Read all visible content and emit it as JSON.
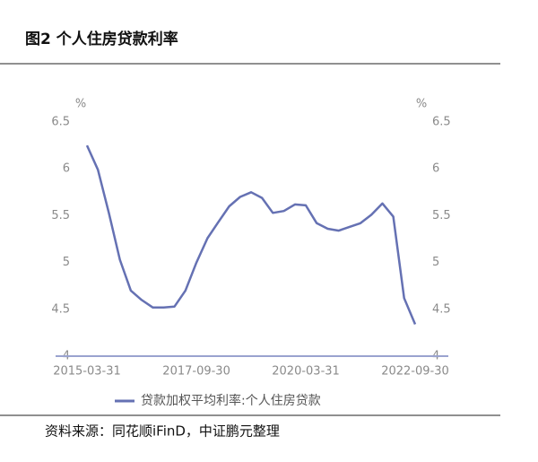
{
  "chart_data": {
    "type": "line",
    "title": "图2  个人住房贷款利率",
    "source": "资料来源：同花顺iFinD，中证鹏元整理",
    "ylabel": "%",
    "y2label": "%",
    "x": [
      "2015-03-31",
      "2015-06-30",
      "2015-09-30",
      "2015-12-31",
      "2016-03-31",
      "2016-06-30",
      "2016-09-30",
      "2016-12-31",
      "2017-03-31",
      "2017-06-30",
      "2017-09-30",
      "2017-12-31",
      "2018-03-31",
      "2018-06-30",
      "2018-09-30",
      "2018-12-31",
      "2019-03-31",
      "2019-06-30",
      "2019-09-30",
      "2019-12-31",
      "2020-03-31",
      "2020-06-30",
      "2020-09-30",
      "2020-12-31",
      "2021-03-31",
      "2021-06-30",
      "2021-09-30",
      "2021-12-31",
      "2022-03-31",
      "2022-06-30",
      "2022-09-30"
    ],
    "series": [
      {
        "name": "贷款加权平均利率:个人住房贷款",
        "color": "#6571b3",
        "values": [
          6.25,
          5.99,
          5.53,
          5.03,
          4.7,
          4.6,
          4.52,
          4.52,
          4.53,
          4.7,
          5.0,
          5.26,
          5.43,
          5.6,
          5.7,
          5.75,
          5.69,
          5.53,
          5.55,
          5.62,
          5.61,
          5.42,
          5.36,
          5.34,
          5.38,
          5.42,
          5.51,
          5.63,
          5.49,
          4.62,
          4.34
        ]
      }
    ],
    "xticks": [
      "2015-03-31",
      "2017-09-30",
      "2020-03-31",
      "2022-09-30"
    ],
    "ylim": [
      4.0,
      6.5
    ],
    "yticks": [
      4.0,
      4.5,
      5.0,
      5.5,
      6.0,
      6.5
    ],
    "y2lim": [
      4.0,
      6.5
    ],
    "y2ticks": [
      4.0,
      4.5,
      5.0,
      5.5,
      6.0,
      6.5
    ]
  }
}
